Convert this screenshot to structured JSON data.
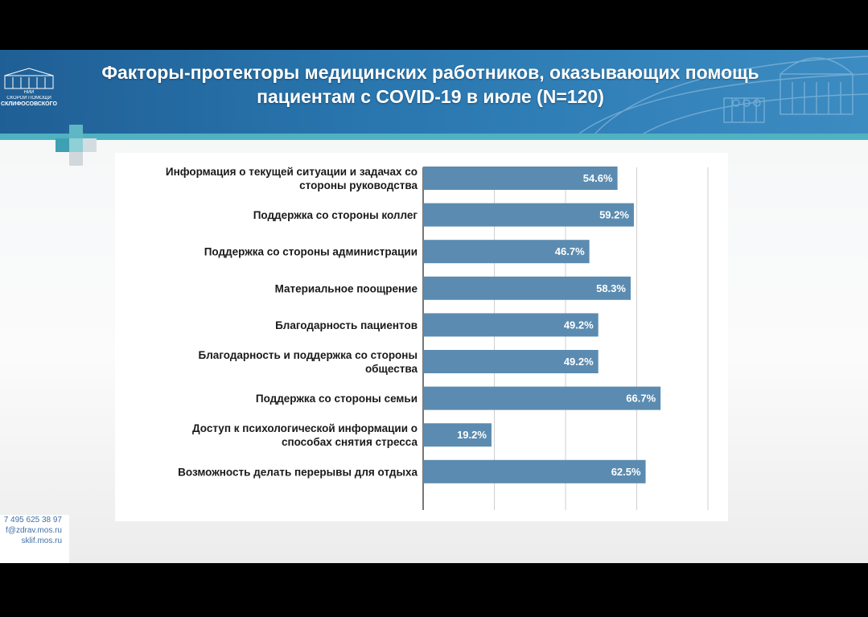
{
  "header": {
    "title_line1": "Факторы-протекторы медицинских работников, оказывающих помощь",
    "title_line2": "пациентам с COVID-19 в июле (N=120)"
  },
  "logo": {
    "line1": "НИИ",
    "line2": "СКОРОЙ ПОМОЩИ",
    "line3": "СКЛИФОСОВСКОГО"
  },
  "footer": {
    "phone": "7 495 625 38 97",
    "email": "f@zdrav.mos.ru",
    "site": "sklif.mos.ru"
  },
  "colors": {
    "bar": "#5b8bb0",
    "header": "#2a77b0",
    "stripe": "#4fb2c1"
  },
  "chart_data": {
    "type": "bar",
    "orientation": "horizontal",
    "categories": [
      [
        "Информация о текущей ситуации и задачах со",
        "стороны руководства"
      ],
      [
        "Поддержка со стороны коллег"
      ],
      [
        "Поддержка со стороны администрации"
      ],
      [
        "Материальное поощрение"
      ],
      [
        "Благодарность пациентов"
      ],
      [
        "Благодарность и поддержка со стороны",
        "общества"
      ],
      [
        "Поддержка со стороны семьи"
      ],
      [
        "Доступ к психологической информации о",
        "способах снятия стресса"
      ],
      [
        "Возможность делать перерывы для отдыха"
      ]
    ],
    "values": [
      54.6,
      59.2,
      46.7,
      58.3,
      49.2,
      49.2,
      66.7,
      19.2,
      62.5
    ],
    "value_labels": [
      "54.6%",
      "59.2%",
      "46.7%",
      "58.3%",
      "49.2%",
      "49.2%",
      "66.7%",
      "19.2%",
      "62.5%"
    ],
    "xlim": [
      0,
      80
    ],
    "grid": true,
    "gridlines_at": [
      0,
      20,
      40,
      60,
      80
    ],
    "legend": "none"
  }
}
